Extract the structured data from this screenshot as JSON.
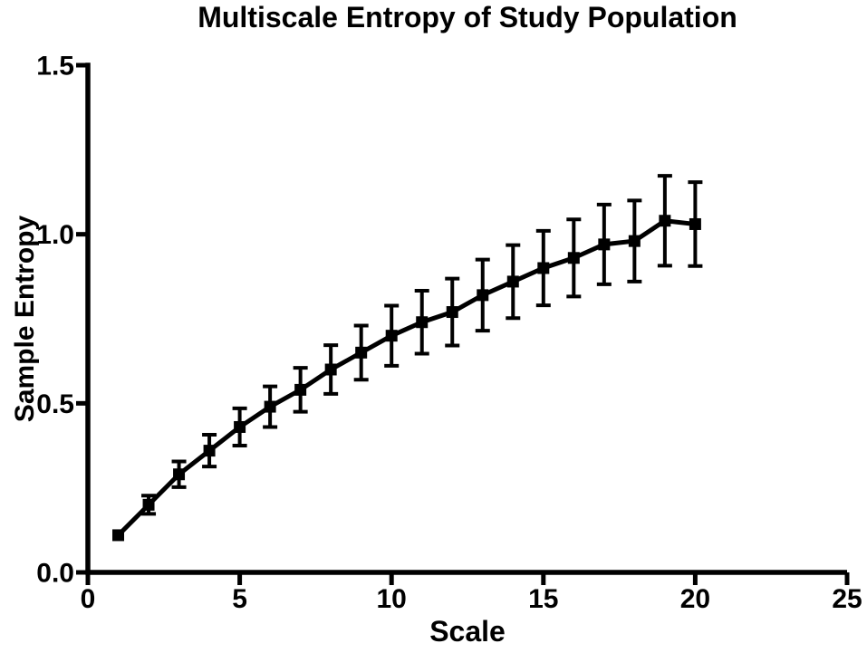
{
  "figure": {
    "background": "#ffffff",
    "foreground": "#000000"
  },
  "chart_data": {
    "type": "line",
    "title": "Multiscale Entropy of Study Population",
    "xlabel": "Scale",
    "ylabel": "Sample Entropy",
    "xlim": [
      0,
      25
    ],
    "ylim": [
      0,
      1.5
    ],
    "grid": false,
    "legend": "none",
    "axis_color": "#000000",
    "x_ticks": [
      {
        "value": 0,
        "label": "0"
      },
      {
        "value": 5,
        "label": "5"
      },
      {
        "value": 10,
        "label": "10"
      },
      {
        "value": 15,
        "label": "15"
      },
      {
        "value": 20,
        "label": "20"
      },
      {
        "value": 25,
        "label": "25"
      }
    ],
    "y_ticks": [
      {
        "value": 0.0,
        "label": "0.0"
      },
      {
        "value": 0.5,
        "label": "0.5"
      },
      {
        "value": 1.0,
        "label": "1.0"
      },
      {
        "value": 1.5,
        "label": "1.5"
      }
    ],
    "series": [
      {
        "marker": "square",
        "color": "#000000",
        "error_bars": "vertical",
        "x": [
          1,
          2,
          3,
          4,
          5,
          6,
          7,
          8,
          9,
          10,
          11,
          12,
          13,
          14,
          15,
          16,
          17,
          18,
          19,
          20
        ],
        "y": [
          0.11,
          0.2,
          0.29,
          0.36,
          0.43,
          0.49,
          0.54,
          0.6,
          0.65,
          0.7,
          0.74,
          0.77,
          0.82,
          0.86,
          0.9,
          0.93,
          0.97,
          0.98,
          1.04,
          1.03
        ],
        "y_err": [
          0.01,
          0.027,
          0.038,
          0.047,
          0.055,
          0.06,
          0.065,
          0.072,
          0.08,
          0.089,
          0.093,
          0.099,
          0.105,
          0.108,
          0.11,
          0.114,
          0.118,
          0.12,
          0.133,
          0.124
        ]
      }
    ]
  }
}
